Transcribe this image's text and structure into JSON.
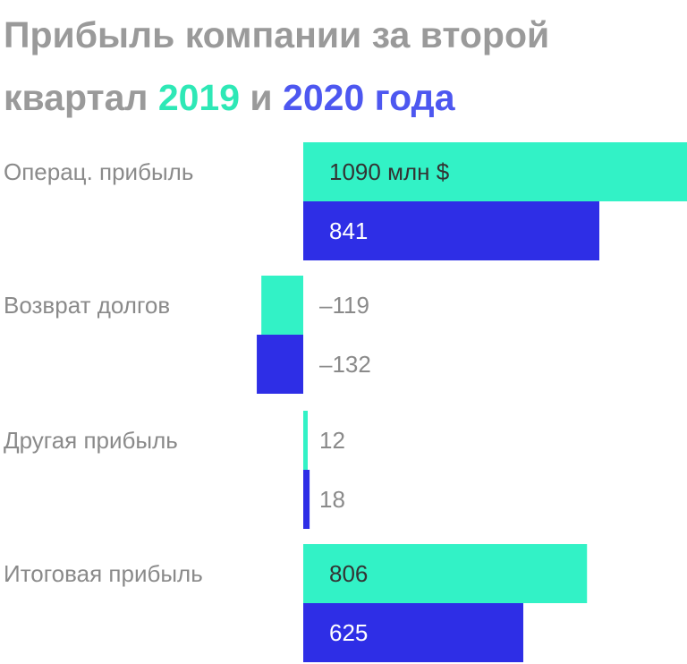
{
  "title": {
    "line1": "Прибыль компании за второй",
    "line2_prefix": "квартал ",
    "year1": "2019",
    "conjunction": " и ",
    "year2": "2020 года"
  },
  "colors": {
    "title": "#9a9a9a",
    "series_2019": "#32f2c6",
    "series_2020": "#2e2ee6",
    "label_inside_2019": "#333333",
    "label_inside_2020": "#ffffff",
    "label_outside": "#8a8a8a",
    "category_label": "#8a8a8a"
  },
  "chart_data": {
    "type": "bar",
    "orientation": "horizontal",
    "categories": [
      "Операц. прибыль",
      "Возврат долгов",
      "Другая прибыль",
      "Итоговая прибыль"
    ],
    "series": [
      {
        "year": "2019",
        "values": [
          1090,
          -119,
          12,
          806
        ],
        "labels": [
          "1090 млн $",
          "–119",
          "12",
          "806"
        ]
      },
      {
        "year": "2020",
        "values": [
          841,
          -132,
          18,
          625
        ],
        "labels": [
          "841",
          "–132",
          "18",
          "625"
        ]
      }
    ],
    "unit": "млн $",
    "xlim": [
      -132,
      1090
    ]
  }
}
